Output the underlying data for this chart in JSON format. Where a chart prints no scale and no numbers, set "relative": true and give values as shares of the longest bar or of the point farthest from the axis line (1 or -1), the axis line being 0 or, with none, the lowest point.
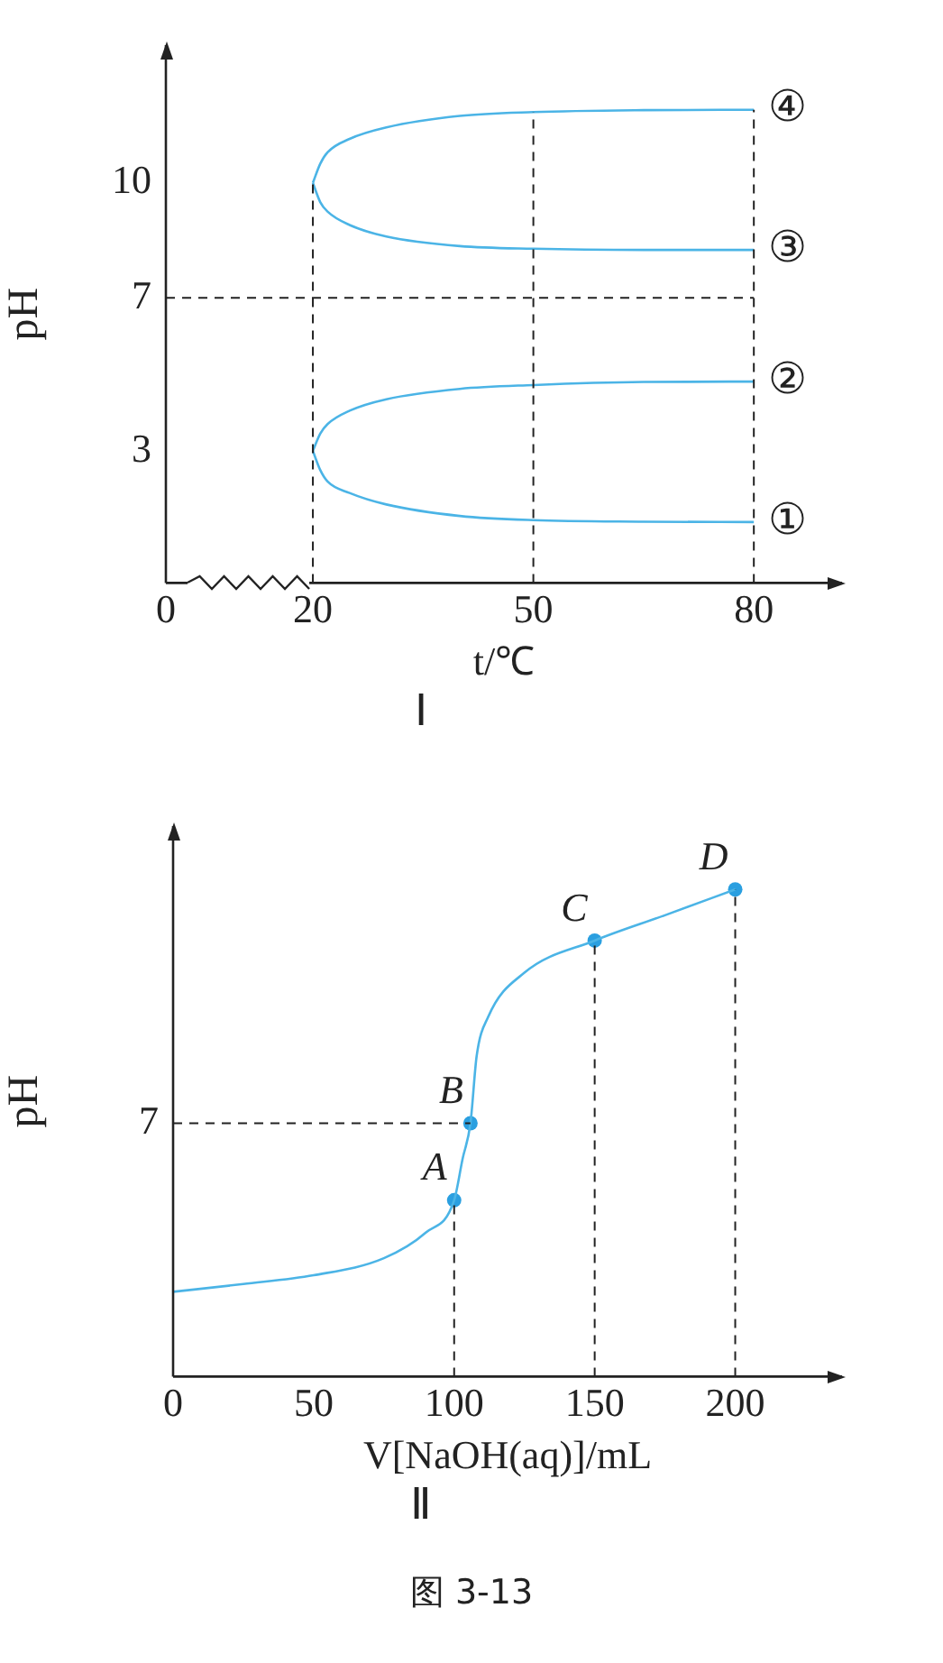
{
  "chart_data": [
    {
      "type": "line",
      "title": "Ⅰ",
      "xlabel": "t/℃",
      "ylabel": "pH",
      "xlim": [
        0,
        92
      ],
      "xticks": [
        0,
        20,
        50,
        80
      ],
      "ylim": [
        -0.45,
        13.6
      ],
      "yticks": [
        3,
        7,
        10
      ],
      "series": [
        {
          "name": "①",
          "color": "#4bb4e6",
          "x": [
            20,
            21,
            22,
            25,
            30,
            40,
            50,
            65,
            80
          ],
          "values": [
            3,
            2.5,
            2.2,
            1.9,
            1.6,
            1.3,
            1.19,
            1.15,
            1.14
          ]
        },
        {
          "name": "②",
          "color": "#4bb4e6",
          "x": [
            20,
            21,
            22,
            25,
            30,
            40,
            50,
            65,
            80
          ],
          "values": [
            3,
            3.45,
            3.7,
            4.05,
            4.35,
            4.62,
            4.72,
            4.8,
            4.81
          ]
        },
        {
          "name": "③",
          "color": "#4bb4e6",
          "x": [
            20,
            21,
            22,
            25,
            30,
            40,
            50,
            65,
            80
          ],
          "values": [
            10,
            9.5,
            9.25,
            8.9,
            8.6,
            8.35,
            8.28,
            8.25,
            8.25
          ]
        },
        {
          "name": "④",
          "color": "#4bb4e6",
          "x": [
            20,
            21,
            22,
            25,
            30,
            40,
            50,
            65,
            80
          ],
          "values": [
            10,
            10.5,
            10.8,
            11.15,
            11.45,
            11.75,
            11.85,
            11.9,
            11.91
          ]
        }
      ],
      "ref_lines": [
        {
          "axis": "y",
          "value": 7
        },
        {
          "axis": "x",
          "value": 20
        },
        {
          "axis": "x",
          "value": 50
        },
        {
          "axis": "x",
          "value": 80
        }
      ]
    },
    {
      "type": "line",
      "title": "Ⅱ",
      "xlabel": "V[NaOH(aq)]/mL",
      "ylabel": "pH",
      "relative": true,
      "xlim": [
        0,
        238
      ],
      "xticks": [
        0,
        50,
        100,
        150,
        200
      ],
      "series": [
        {
          "color": "#4bb4e6",
          "x": [
            0,
            25,
            50,
            75,
            90,
            100,
            103,
            105.8,
            108,
            112,
            125,
            150,
            175,
            200
          ],
          "values": [
            0.174,
            0.19,
            0.208,
            0.243,
            0.296,
            0.362,
            0.447,
            0.52,
            0.658,
            0.737,
            0.829,
            0.895,
            0.947,
            1
          ]
        },
        {
          "type": "scatter",
          "marker": "circle",
          "color": "#2a9fe0",
          "x": [
            100,
            105.8,
            150,
            200
          ],
          "values": [
            0.362,
            0.52,
            0.895,
            1
          ]
        }
      ],
      "ref_lines": [
        {
          "axis": "y",
          "value": 0.52
        },
        {
          "axis": "x",
          "value": 100
        },
        {
          "axis": "x",
          "value": 150
        },
        {
          "axis": "x",
          "value": 200
        }
      ],
      "annotations": [
        "7",
        {
          "text": "A",
          "x": 100,
          "y": 0.362
        },
        {
          "text": "B",
          "x": 105.8,
          "y": 0.52
        },
        {
          "text": "C",
          "x": 150,
          "y": 0.895
        },
        {
          "text": "D",
          "x": 200,
          "y": 1
        },
        "图 3-13"
      ]
    }
  ]
}
